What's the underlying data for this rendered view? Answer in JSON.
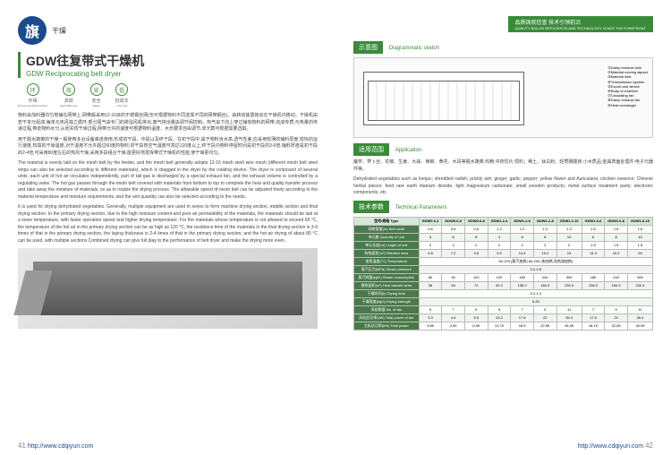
{
  "logo": {
    "char": "旗",
    "sub": "干燥"
  },
  "topBar": {
    "line1": "品质铸就信誉  技术引领前沿",
    "line2": "QUALITY BUILDS REPUTATION AND TECHNOLOGY LEADS THE FOREFRONT"
  },
  "title": {
    "cn": "GDW往复带式干燥机",
    "en": "GDW Reciprocating belt dryer"
  },
  "features": [
    {
      "icon": "环",
      "cn": "环保",
      "en": "Environmental protection"
    },
    {
      "icon": "效",
      "cn": "高效",
      "en": "High efficiency"
    },
    {
      "icon": "安",
      "cn": "安全",
      "en": "Safety"
    },
    {
      "icon": "低",
      "cn": "低成本",
      "en": "Low cost"
    }
  ],
  "bodyText": {
    "cn1": "物料由加料器均匀地铺在网带上,网带般采用12-16目的不锈钢丝网(也可根据物料不同选择不同的网带钢丝)。由转动装置拖动在干燥机内移动。干燥机由若干单元组成,每单元热风独立循环,部分尾气由专门的排湿风机排出,废气排出量由调节阀控制。热气由下向上穿过铺有物料的网带,完成传质,与热量的传递过程,带走物料水分,从而实现干燥过程,网带允许的速度可根据物料温度、水份要求自由调节,单元数可根据需要选取。",
    "cn2": "用于脱水蔬菜的干燥一般使用多台设备串连使用,形成初干段、中段以及终干段。在初干段中,由于物料含水高,透气性差,应采用较薄的铺料厚度,较快的运行速度,较高的干燥温度,对于温度不允许超过60度的物料,初干段热空气温度可高达120度以上,终干段内物料停留时间是初干段的3-6倍,铺料厚度是初干段的2-4倍,可采用80度左右的热风干燥,采用多段组合干燥,能更好地发挥带式干燥机的性能,使干燥更均匀。",
    "en1": "The material is evenly laid on the mesh belt by the feeder, and the mesh belt generally adopts 12-16 mesh steel wire mesh (different mesh belt steel strips can also be selected according to different materials), which is dragged in the dryer by the rotating device. The dryer is composed of several units, each unit of hot air circulates independently, part of tail gas is discharged by a special exhaust fan, and the exhaust volume is controlled by a regulating valve. The hot gas passes through the mesh belt covered with materials from bottom to top to complete the heat and quality transfer process and take away the moisture of materials, so as to realize the drying process. The allowable speed of mesh belt can be adjusted freely according to the material temperature and moisture requirements, and the unit quantity can also be selected according to the needs.",
    "en2": "It is used for drying dehydrated vegetables. Generally, multiple equipment are used in series to form machine drying section, middle section and final drying section. In the primary drying section, due to the high moisture content and poor air permeability of the materials, the materials should be laid at a lower temperature, with faster operation speed and higher drying temperature. For the materials whose temperature is not allowed to exceed 60 °C, the temperature of the hot air in the primary drying section can be as high as 120 °C, the residence time of the materials in the final drying section is 3-6 times of that in the primary drying section, the laying thickness is 2-4 times of that in the primary drying section, and the hot air drying of about 80 °C can be used, with multiple sections Combined drying can give full play to the performance of belt dryer and make the drying more even."
  },
  "sections": {
    "diagram": {
      "cn": "示意图",
      "en": "Diagrammatic sketch"
    },
    "application": {
      "cn": "适用范围",
      "en": "Application"
    },
    "params": {
      "cn": "技术参数",
      "en": "Technical Parameters"
    }
  },
  "diagramLabels": [
    "①Damp exhaust hole",
    "②Material moving aspect",
    "③Material inlet",
    "④Transmission system",
    "⑤Export and device",
    "⑥Body of chamber",
    "⑦Circulating fan",
    "⑧Damp exhaust fan",
    "⑨Heat exchanger"
  ],
  "application": {
    "cn": "魔芋、萝卜丝、花椒、生姜、大蒜、辣椒、黄花、木耳等脱水蔬菜;鸡精;中药饮片;饲料；稀土、钛白粉、轻质碳酸镁;小木质品;金属表面处理件;电子元器件等。",
    "en": "Dehydrated vegetables such as konjac; shredded radish; prickly ash; ginger; garlic; pepper; yellow flower and Auricularia; chicken essence; Chinese herbal pieces; feed rare earth titanium dioxide, light magnesium carbonate; small wooden products; metal surface treatment parts; electronic components, etc."
  },
  "table": {
    "headers": [
      "型号/规格 Type",
      "GDW0.6-4",
      "GDW0.6-6",
      "GDW0.6-8",
      "GDW1.2-4",
      "GDW1.2-6",
      "GDW1.2-8",
      "GDW1.2-10",
      "GDW1.6-6",
      "GDW1.6-8",
      "GDW1.6-10"
    ],
    "rows": [
      {
        "label": "网带宽度(m) Belt width",
        "vals": [
          "0.6",
          "0.6",
          "0.6",
          "1.2",
          "1.2",
          "1.2",
          "1.2",
          "1.6",
          "1.6",
          "1.6"
        ]
      },
      {
        "label": "单元数 Quantity of unit",
        "vals": [
          "4",
          "6",
          "8",
          "4",
          "6",
          "8",
          "10",
          "6",
          "8",
          "10"
        ]
      },
      {
        "label": "单元长度(m) Length of unit",
        "vals": [
          "2",
          "2",
          "2",
          "2",
          "2",
          "2",
          "2",
          "1.5",
          "1.5",
          "1.5"
        ]
      },
      {
        "label": "有效面积(m²) Effective area",
        "vals": [
          "4.8",
          "7.2",
          "9.6",
          "9.6",
          "14.4",
          "19.2",
          "24",
          "14.4",
          "19.2",
          "24"
        ]
      },
      {
        "label": "使用温度(°C) Temperature",
        "vals": [
          "60-120 (蒸汽加热) 60-200 (电加热,导热油加热)",
          "",
          "",
          "",
          "",
          "",
          "",
          "",
          "",
          ""
        ]
      },
      {
        "label": "蒸汽压力(MPa) Steam pressure",
        "vals": [
          "0.2-0.6",
          "",
          "",
          "",
          "",
          "",
          "",
          "",
          "",
          ""
        ]
      },
      {
        "label": "蒸汽耗量(kg/h) Steam consumption",
        "vals": [
          "60",
          "90",
          "120",
          "120",
          "180",
          "240",
          "300",
          "180",
          "240",
          "300"
        ]
      },
      {
        "label": "换热面积(m²) Heat transfer area",
        "vals": [
          "36",
          "54",
          "72",
          "92.2",
          "138.2",
          "184.3",
          "230.4",
          "138.2",
          "184.3",
          "230.4"
        ]
      },
      {
        "label": "干燥时间(h) Drying time",
        "vals": [
          "0.2-1.2",
          "",
          "",
          "",
          "",
          "",
          "",
          "",
          "",
          ""
        ]
      },
      {
        "label": "干燥强度(kg/h) Drying strength",
        "vals": [
          "6-30",
          "",
          "",
          "",
          "",
          "",
          "",
          "",
          "",
          ""
        ]
      },
      {
        "label": "风机数量 No. of fan",
        "vals": [
          "5",
          "7",
          "9",
          "5",
          "7",
          "9",
          "11",
          "7",
          "9",
          "11"
        ]
      },
      {
        "label": "风机总功率(kW) Total power of fan",
        "vals": [
          "3.3",
          "4.4",
          "5.5",
          "13.2",
          "17.6",
          "22",
          "26.4",
          "17.6",
          "22",
          "26.4"
        ]
      },
      {
        "label": "主机总功率(kW) Total power",
        "vals": [
          "3.85",
          "4.95",
          "6.05",
          "13.75",
          "18.5",
          "22.55",
          "26.95",
          "18.15",
          "22.55",
          "26.95"
        ]
      }
    ]
  },
  "footer": {
    "url": "http://www.cdqiyun.com",
    "pageLeft": "41",
    "pageRight": "42"
  }
}
